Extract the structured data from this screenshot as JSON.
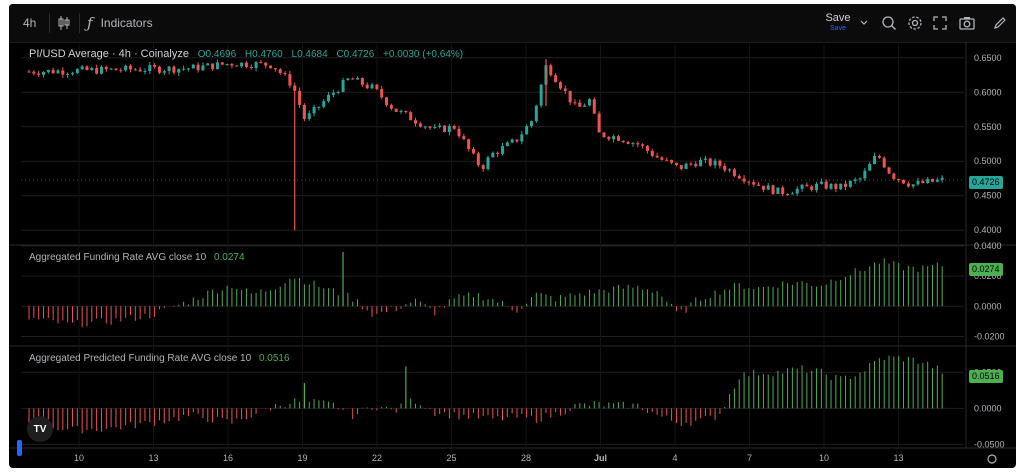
{
  "toolbar": {
    "interval": "4h",
    "indicators_label": "Indicators",
    "save_label": "Save",
    "save_sub": "Save"
  },
  "legend": {
    "main_title": "PI/USD Average · 4h · Coinalyze",
    "open": "O0.4696",
    "high": "H0.4760",
    "low": "L0.4684",
    "close": "C0.4726",
    "change": "+0.0030 (+0.64%)",
    "funding_title": "Aggregated Funding Rate AVG close 10",
    "funding_value": "0.0274",
    "predicted_title": "Aggregated Predicted Funding Rate AVG close 10",
    "predicted_value": "0.0516"
  },
  "price_tag": "0.4726",
  "funding_tag": "0.0274",
  "predicted_tag": "0.0516",
  "colors": {
    "up": "#26a69a",
    "down": "#ef5350",
    "hist_up": "#4caf50",
    "hist_down": "#ef5350",
    "bg": "#000000",
    "grid": "#1f1f1f"
  },
  "icons": [
    "candles-icon",
    "function-icon",
    "chevron-down-icon",
    "search-icon",
    "gear-icon",
    "fullscreen-icon",
    "camera-icon",
    "pencil-icon",
    "tradingview-logo",
    "settings-icon"
  ],
  "chart_data": [
    {
      "type": "candlestick",
      "title": "PI/USD Average · 4h · Coinalyze",
      "x_ticks": [
        "10",
        "13",
        "16",
        "19",
        "22",
        "25",
        "28",
        "Jul",
        "4",
        "7",
        "10",
        "13"
      ],
      "y_ticks": [
        "0.6500",
        "0.6000",
        "0.5500",
        "0.5000",
        "0.4500",
        "0.4000"
      ],
      "ylim": [
        0.38,
        0.67
      ],
      "last": 0.4726,
      "path": [
        [
          0,
          0.63
        ],
        [
          8,
          0.635
        ],
        [
          10,
          0.642
        ],
        [
          12,
          0.64
        ],
        [
          13,
          0.61
        ],
        [
          13.6,
          0.56
        ],
        [
          15,
          0.6
        ],
        [
          15.8,
          0.62
        ],
        [
          17,
          0.605
        ],
        [
          18,
          0.575
        ],
        [
          19,
          0.56
        ],
        [
          20,
          0.545
        ],
        [
          21,
          0.55
        ],
        [
          21.8,
          0.51
        ],
        [
          22.3,
          0.49
        ],
        [
          22.8,
          0.51
        ],
        [
          24,
          0.53
        ],
        [
          24.8,
          0.56
        ],
        [
          25.5,
          0.64
        ],
        [
          26.2,
          0.61
        ],
        [
          27,
          0.575
        ],
        [
          27.7,
          0.59
        ],
        [
          28,
          0.54
        ],
        [
          29,
          0.535
        ],
        [
          30,
          0.525
        ],
        [
          31,
          0.505
        ],
        [
          32,
          0.49
        ],
        [
          33,
          0.5
        ],
        [
          34,
          0.495
        ],
        [
          35,
          0.48
        ],
        [
          36,
          0.465
        ],
        [
          37,
          0.455
        ],
        [
          38,
          0.46
        ],
        [
          39,
          0.465
        ],
        [
          40,
          0.462
        ],
        [
          41,
          0.475
        ],
        [
          41.8,
          0.51
        ],
        [
          42.5,
          0.48
        ],
        [
          43.5,
          0.466
        ],
        [
          45,
          0.4726
        ]
      ],
      "wicks": [
        {
          "x": 13.1,
          "low": 0.4,
          "high": 0.6
        },
        {
          "x": 25.5,
          "low": 0.58,
          "high": 0.648
        }
      ]
    },
    {
      "type": "bar",
      "title": "Aggregated Funding Rate AVG close 10",
      "y_ticks": [
        "0.0400",
        "0.0200",
        "0.0000",
        "-0.0200"
      ],
      "ylim": [
        -0.025,
        0.04
      ],
      "last": 0.0274,
      "path": [
        [
          0,
          -0.008
        ],
        [
          2,
          -0.012
        ],
        [
          4,
          -0.01
        ],
        [
          6,
          -0.006
        ],
        [
          8,
          0.004
        ],
        [
          9,
          0.01
        ],
        [
          10,
          0.014
        ],
        [
          11,
          0.008
        ],
        [
          12,
          0.012
        ],
        [
          13,
          0.02
        ],
        [
          14,
          0.015
        ],
        [
          15,
          0.01
        ],
        [
          16,
          0.005
        ],
        [
          17,
          -0.006
        ],
        [
          18,
          -0.002
        ],
        [
          19,
          0.004
        ],
        [
          20,
          -0.004
        ],
        [
          21,
          0.005
        ],
        [
          22,
          0.008
        ],
        [
          23,
          0.004
        ],
        [
          24,
          -0.003
        ],
        [
          25,
          0.008
        ],
        [
          26,
          0.005
        ],
        [
          27,
          0.008
        ],
        [
          28,
          0.01
        ],
        [
          29,
          0.012
        ],
        [
          30,
          0.013
        ],
        [
          31,
          0.01
        ],
        [
          32,
          -0.006
        ],
        [
          33,
          0.005
        ],
        [
          34,
          0.01
        ],
        [
          35,
          0.014
        ],
        [
          36,
          0.012
        ],
        [
          37,
          0.015
        ],
        [
          38,
          0.016
        ],
        [
          39,
          0.014
        ],
        [
          40,
          0.02
        ],
        [
          41,
          0.024
        ],
        [
          42,
          0.03
        ],
        [
          43,
          0.026
        ],
        [
          44,
          0.025
        ],
        [
          45,
          0.0274
        ]
      ],
      "spikes": [
        {
          "x": 15.5,
          "v": 0.036
        }
      ]
    },
    {
      "type": "bar",
      "title": "Aggregated Predicted Funding Rate AVG close 10",
      "y_ticks": [
        "0.0500",
        "0.0000",
        "-0.0500"
      ],
      "ylim": [
        -0.055,
        0.085
      ],
      "last": 0.0516,
      "path": [
        [
          0,
          -0.02
        ],
        [
          2,
          -0.03
        ],
        [
          4,
          -0.028
        ],
        [
          6,
          -0.02
        ],
        [
          8,
          -0.01
        ],
        [
          10,
          -0.02
        ],
        [
          12,
          0.002
        ],
        [
          13,
          0.01
        ],
        [
          14,
          0.008
        ],
        [
          15,
          0.005
        ],
        [
          16,
          -0.01
        ],
        [
          17,
          0.004
        ],
        [
          18,
          -0.004
        ],
        [
          19,
          0.012
        ],
        [
          20,
          -0.005
        ],
        [
          21,
          -0.01
        ],
        [
          22,
          -0.012
        ],
        [
          23,
          -0.015
        ],
        [
          24,
          -0.012
        ],
        [
          25,
          -0.015
        ],
        [
          26,
          -0.008
        ],
        [
          27,
          0.004
        ],
        [
          28,
          0.006
        ],
        [
          29,
          0.004
        ],
        [
          30,
          0.004
        ],
        [
          31,
          -0.01
        ],
        [
          32,
          -0.02
        ],
        [
          33,
          -0.018
        ],
        [
          34,
          -0.01
        ],
        [
          35,
          0.045
        ],
        [
          36,
          0.05
        ],
        [
          37,
          0.05
        ],
        [
          38,
          0.055
        ],
        [
          39,
          0.05
        ],
        [
          40,
          0.04
        ],
        [
          41,
          0.05
        ],
        [
          42,
          0.07
        ],
        [
          43,
          0.07
        ],
        [
          44,
          0.065
        ],
        [
          45,
          0.0516
        ]
      ],
      "spikes": [
        {
          "x": 13.5,
          "v": 0.035
        },
        {
          "x": 18.5,
          "v": 0.058
        }
      ]
    }
  ]
}
